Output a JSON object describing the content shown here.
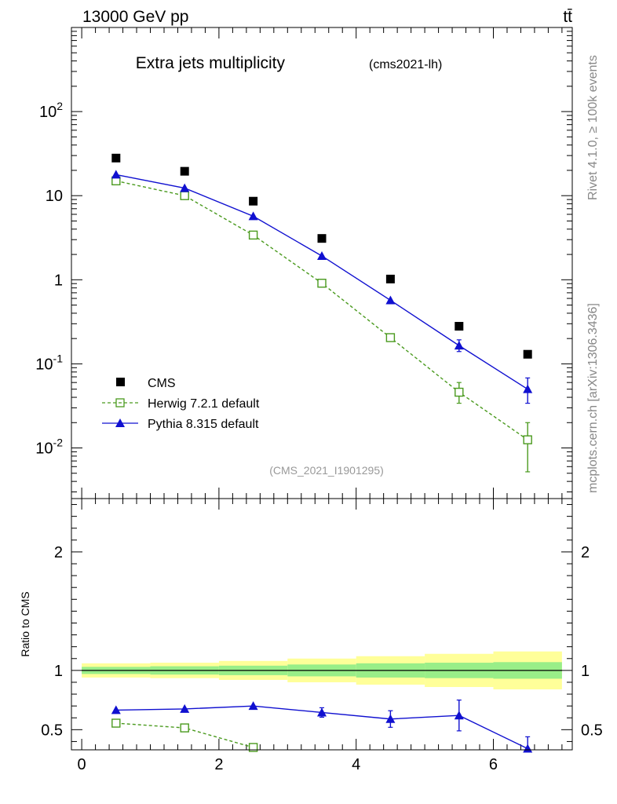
{
  "header": {
    "energy_label": "13000 GeV pp",
    "process_label": "tt̄",
    "side_label_top": "Rivet 4.1.0, ≥ 100k events",
    "side_label_bottom": "mcplots.cern.ch [arXiv:1306.3436]"
  },
  "chart_data": [
    {
      "type": "scatter",
      "title": "Extra jets multiplicity",
      "subtitle": "(cms2021-lh)",
      "watermark": "(CMS_2021_I1901295)",
      "yscale": "log",
      "ylim": [
        0.0025,
        1000
      ],
      "xlim": [
        -0.15,
        7.15
      ],
      "ytick_labels": [
        "10^-2",
        "10^-1",
        "1",
        "10",
        "10^2"
      ],
      "legend": {
        "position": "bottom-left",
        "entries": [
          "CMS",
          "Herwig 7.2.1 default",
          "Pythia 8.315 default"
        ]
      },
      "series": [
        {
          "name": "CMS",
          "marker": "square",
          "color": "#000000",
          "x": [
            0.5,
            1.5,
            2.5,
            3.5,
            4.5,
            5.5,
            6.5
          ],
          "values": [
            28,
            19.5,
            8.6,
            3.1,
            1.02,
            0.28,
            0.13
          ]
        },
        {
          "name": "Herwig 7.2.1 default",
          "marker": "open-square",
          "line": "dashed",
          "color": "#4a9a1e",
          "x": [
            0.5,
            1.5,
            2.5,
            3.5,
            4.5,
            5.5,
            6.5
          ],
          "values": [
            15,
            10,
            3.4,
            0.91,
            0.205,
            0.046,
            0.0125
          ],
          "err_low": [
            0.3,
            0.2,
            0.08,
            0.03,
            0.018,
            0.012,
            0.0073
          ],
          "err_high": [
            0.3,
            0.2,
            0.08,
            0.03,
            0.018,
            0.014,
            0.0075
          ]
        },
        {
          "name": "Pythia 8.315 default",
          "marker": "triangle",
          "line": "solid",
          "color": "#1010d0",
          "x": [
            0.5,
            1.5,
            2.5,
            3.5,
            4.5,
            5.5,
            6.5
          ],
          "values": [
            17.8,
            12.3,
            5.7,
            1.92,
            0.57,
            0.165,
            0.05
          ],
          "err_low": [
            0.3,
            0.2,
            0.1,
            0.05,
            0.03,
            0.025,
            0.016
          ],
          "err_high": [
            0.3,
            0.2,
            0.1,
            0.05,
            0.03,
            0.028,
            0.018
          ]
        }
      ]
    },
    {
      "type": "scatter",
      "ylabel": "Ratio to CMS",
      "ylim": [
        0.33,
        2.45
      ],
      "xlim": [
        -0.15,
        7.15
      ],
      "xticks": [
        0,
        2,
        4,
        6
      ],
      "xtick_labels": [
        "0",
        "2",
        "4",
        "6"
      ],
      "yticks": [
        0.5,
        1,
        2
      ],
      "ytick_labels": [
        "0.5",
        "1",
        "2"
      ],
      "bands": {
        "x_edges": [
          0,
          1,
          2,
          3,
          4,
          5,
          6,
          7
        ],
        "inner_half_width": [
          0.03,
          0.035,
          0.04,
          0.05,
          0.06,
          0.065,
          0.07
        ],
        "outer_half_width": [
          0.06,
          0.065,
          0.08,
          0.1,
          0.12,
          0.14,
          0.16
        ]
      },
      "series": [
        {
          "name": "Herwig 7.2.1 default",
          "color": "#4a9a1e",
          "x": [
            0.5,
            1.5,
            2.5
          ],
          "values": [
            0.555,
            0.515,
            0.35
          ],
          "err": [
            0.01,
            0.01,
            0.01
          ]
        },
        {
          "name": "Pythia 8.315 default",
          "color": "#1010d0",
          "x": [
            0.5,
            1.5,
            2.5,
            3.5,
            4.5,
            5.5,
            6.5
          ],
          "values": [
            0.665,
            0.675,
            0.7,
            0.645,
            0.59,
            0.62,
            0.34
          ],
          "err": [
            0.01,
            0.01,
            0.02,
            0.04,
            0.07,
            0.13,
            0.1
          ]
        }
      ]
    }
  ]
}
